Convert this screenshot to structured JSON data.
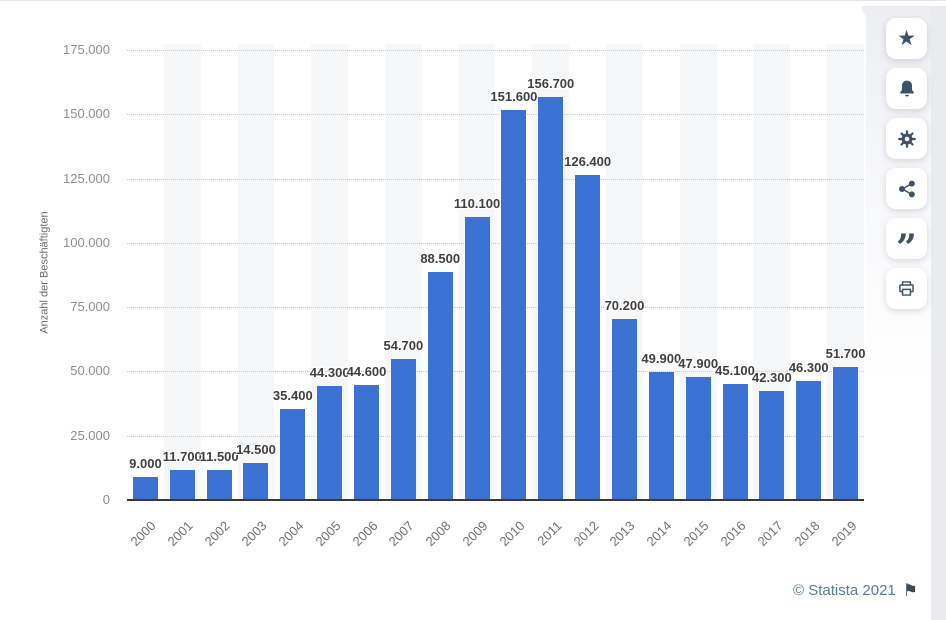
{
  "chart_data": {
    "type": "bar",
    "title": "",
    "xlabel": "",
    "ylabel": "Anzahl der Beschäftigten",
    "ylim": [
      0,
      175000
    ],
    "ytick_interval": 25000,
    "grid": "dotted horizontal",
    "legend": "none",
    "categories": [
      "2000",
      "2001",
      "2002",
      "2003",
      "2004",
      "2005",
      "2006",
      "2007",
      "2008",
      "2009",
      "2010",
      "2011",
      "2012",
      "2013",
      "2014",
      "2015",
      "2016",
      "2017",
      "2018",
      "2019"
    ],
    "values": [
      9000,
      11700,
      11500,
      14500,
      35400,
      44300,
      44600,
      54700,
      88500,
      110100,
      151600,
      156700,
      126400,
      70200,
      49900,
      47900,
      45100,
      42300,
      46300,
      51700
    ],
    "value_labels": [
      "9.000",
      "11.700",
      "11.500",
      "14.500",
      "35.400",
      "44.300",
      "44.600",
      "54.700",
      "88.500",
      "110.100",
      "151.600",
      "156.700",
      "126.400",
      "70.200",
      "49.900",
      "47.900",
      "45.100",
      "42.300",
      "46.300",
      "51.700"
    ],
    "yticks": [
      {
        "label": "175.000",
        "value": 175000
      },
      {
        "label": "150.000",
        "value": 150000
      },
      {
        "label": "125.000",
        "value": 125000
      },
      {
        "label": "100.000",
        "value": 100000
      },
      {
        "label": "75.000",
        "value": 75000
      },
      {
        "label": "50.000",
        "value": 50000
      },
      {
        "label": "25.000",
        "value": 25000
      },
      {
        "label": "0",
        "value": 0
      }
    ]
  },
  "colors": {
    "bar": "#3b72d4",
    "band": "#f6f7f9",
    "grid": "#cbcbcb",
    "axis_line": "#3a3a3a",
    "icon": "#3d5269",
    "footer_text": "#5c7b99"
  },
  "icons": {
    "star": "★",
    "quote": "”",
    "flag": "⚑"
  },
  "toolbar": {
    "buttons": [
      {
        "id": "favorite",
        "icon": "star-icon"
      },
      {
        "id": "notifications",
        "icon": "bell-icon"
      },
      {
        "id": "settings",
        "icon": "gear-icon"
      },
      {
        "id": "share",
        "icon": "share-icon"
      },
      {
        "id": "cite",
        "icon": "quote-icon"
      },
      {
        "id": "print",
        "icon": "print-icon"
      }
    ]
  },
  "footer": {
    "copyright": "© Statista 2021"
  }
}
